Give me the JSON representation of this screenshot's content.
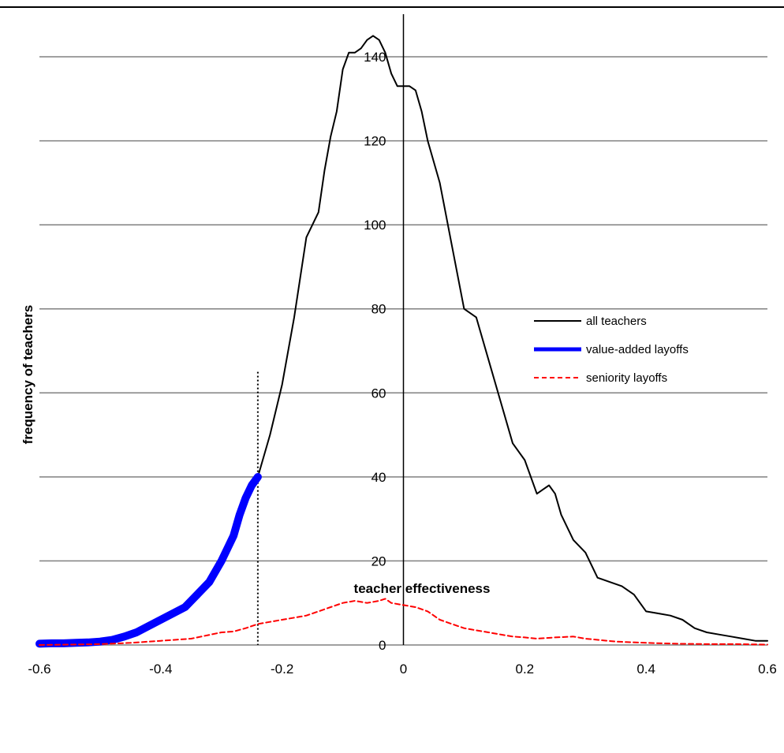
{
  "chart_data": {
    "type": "line",
    "title": "",
    "xlabel": "teacher effectiveness",
    "ylabel": "frequency of teachers",
    "xlim": [
      -0.6,
      0.6
    ],
    "ylim": [
      0,
      150
    ],
    "x_ticks": [
      -0.6,
      -0.4,
      -0.2,
      0,
      0.2,
      0.4,
      0.6
    ],
    "x_tick_labels": [
      "-0.6",
      "-0.4",
      "-0.2",
      "0",
      "0.2",
      "0.4",
      "0.6"
    ],
    "y_ticks": [
      0,
      20,
      40,
      60,
      80,
      100,
      120,
      140
    ],
    "y_tick_labels": [
      "0",
      "20",
      "40",
      "60",
      "80",
      "100",
      "120",
      "140"
    ],
    "grid": "horizontal",
    "legend_position": "right",
    "cutoff_line": {
      "x": -0.24,
      "y_top": 65
    },
    "colors": {
      "all_teachers": "#000000",
      "value_added_layoffs": "#0000ff",
      "seniority_layoffs": "#ff0000",
      "grid": "#808080"
    },
    "series": [
      {
        "name": "all teachers",
        "style": "solid",
        "x": [
          -0.24,
          -0.22,
          -0.2,
          -0.18,
          -0.16,
          -0.14,
          -0.13,
          -0.12,
          -0.11,
          -0.1,
          -0.09,
          -0.08,
          -0.07,
          -0.06,
          -0.05,
          -0.04,
          -0.03,
          -0.02,
          -0.01,
          0.0,
          0.01,
          0.02,
          0.03,
          0.04,
          0.06,
          0.08,
          0.1,
          0.12,
          0.14,
          0.16,
          0.18,
          0.2,
          0.22,
          0.23,
          0.24,
          0.25,
          0.26,
          0.28,
          0.3,
          0.32,
          0.34,
          0.36,
          0.38,
          0.4,
          0.42,
          0.44,
          0.46,
          0.48,
          0.5,
          0.52,
          0.54,
          0.56,
          0.58,
          0.6
        ],
        "y": [
          40,
          50,
          62,
          78,
          97,
          103,
          113,
          121,
          127,
          137,
          141,
          141,
          142,
          144,
          145,
          144,
          141,
          136,
          133,
          133,
          133,
          132,
          127,
          120,
          110,
          95,
          80,
          78,
          68,
          58,
          48,
          44,
          36,
          37,
          38,
          36,
          31,
          25,
          22,
          16,
          15,
          14,
          12,
          8,
          7.5,
          7,
          6,
          4,
          3,
          2.5,
          2,
          1.5,
          1,
          1
        ]
      },
      {
        "name": "value-added layoffs",
        "style": "thick",
        "x": [
          -0.6,
          -0.58,
          -0.56,
          -0.54,
          -0.52,
          -0.5,
          -0.48,
          -0.46,
          -0.44,
          -0.42,
          -0.4,
          -0.38,
          -0.36,
          -0.34,
          -0.32,
          -0.3,
          -0.28,
          -0.27,
          -0.26,
          -0.25,
          -0.24
        ],
        "y": [
          0.3,
          0.4,
          0.4,
          0.5,
          0.6,
          0.8,
          1.2,
          2,
          3,
          4.5,
          6,
          7.5,
          9,
          12,
          15,
          20,
          26,
          31,
          35,
          38,
          40
        ]
      },
      {
        "name": "seniority layoffs",
        "style": "dashed",
        "x": [
          -0.6,
          -0.55,
          -0.5,
          -0.45,
          -0.4,
          -0.35,
          -0.3,
          -0.28,
          -0.26,
          -0.24,
          -0.22,
          -0.2,
          -0.18,
          -0.16,
          -0.14,
          -0.12,
          -0.1,
          -0.08,
          -0.06,
          -0.04,
          -0.03,
          -0.02,
          0.0,
          0.02,
          0.04,
          0.06,
          0.08,
          0.1,
          0.12,
          0.14,
          0.16,
          0.18,
          0.2,
          0.22,
          0.25,
          0.28,
          0.3,
          0.35,
          0.4,
          0.45,
          0.5,
          0.55,
          0.6
        ],
        "y": [
          0,
          0.1,
          0.2,
          0.5,
          1,
          1.5,
          3,
          3.2,
          4,
          5,
          5.5,
          6,
          6.5,
          7,
          8,
          9,
          10,
          10.5,
          10,
          10.5,
          11,
          10,
          9.5,
          9,
          8,
          6,
          5,
          4,
          3.5,
          3,
          2.5,
          2,
          1.8,
          1.5,
          1.8,
          2,
          1.5,
          0.8,
          0.5,
          0.3,
          0.2,
          0.2,
          0.1
        ]
      }
    ]
  }
}
